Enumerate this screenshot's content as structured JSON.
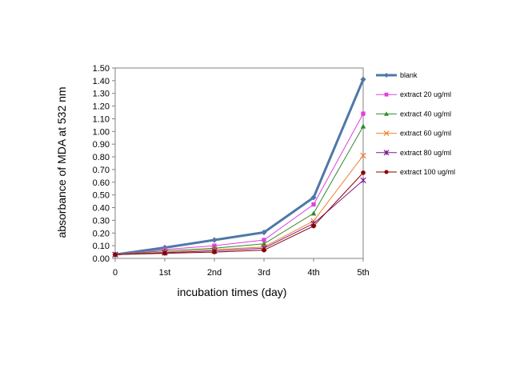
{
  "chart_data": {
    "type": "line",
    "title": "",
    "xlabel": "incubation times (day)",
    "ylabel": "absorbance of MDA at 532 nm",
    "categories": [
      "0",
      "1st",
      "2nd",
      "3rd",
      "4th",
      "5th"
    ],
    "ylim": [
      0,
      1.5
    ],
    "yticks": [
      "0.00",
      "0.10",
      "0.20",
      "0.30",
      "0.40",
      "0.50",
      "0.60",
      "0.70",
      "0.80",
      "0.90",
      "1.00",
      "1.10",
      "1.20",
      "1.30",
      "1.40",
      "1.50"
    ],
    "grid": false,
    "legend_position": "right",
    "series": [
      {
        "name": "blank",
        "color": "#4F78A8",
        "marker": "diamond",
        "values": [
          0.03,
          0.085,
          0.145,
          0.205,
          0.48,
          1.41
        ]
      },
      {
        "name": "extract 20 ug/ml",
        "color": "#E040E0",
        "marker": "square",
        "values": [
          0.03,
          0.07,
          0.1,
          0.145,
          0.425,
          1.14
        ]
      },
      {
        "name": "extract 40 ug/ml",
        "color": "#2E8B2E",
        "marker": "triangle",
        "values": [
          0.03,
          0.06,
          0.08,
          0.115,
          0.355,
          1.04
        ]
      },
      {
        "name": "extract 60 ug/ml",
        "color": "#F08030",
        "marker": "x",
        "values": [
          0.03,
          0.05,
          0.07,
          0.09,
          0.295,
          0.81
        ]
      },
      {
        "name": "extract 80 ug/ml",
        "color": "#7B1F8A",
        "marker": "star",
        "values": [
          0.03,
          0.045,
          0.06,
          0.08,
          0.275,
          0.615
        ]
      },
      {
        "name": "extract 100 ug/ml",
        "color": "#8B0000",
        "marker": "circle",
        "values": [
          0.03,
          0.04,
          0.05,
          0.065,
          0.255,
          0.675
        ]
      }
    ]
  }
}
